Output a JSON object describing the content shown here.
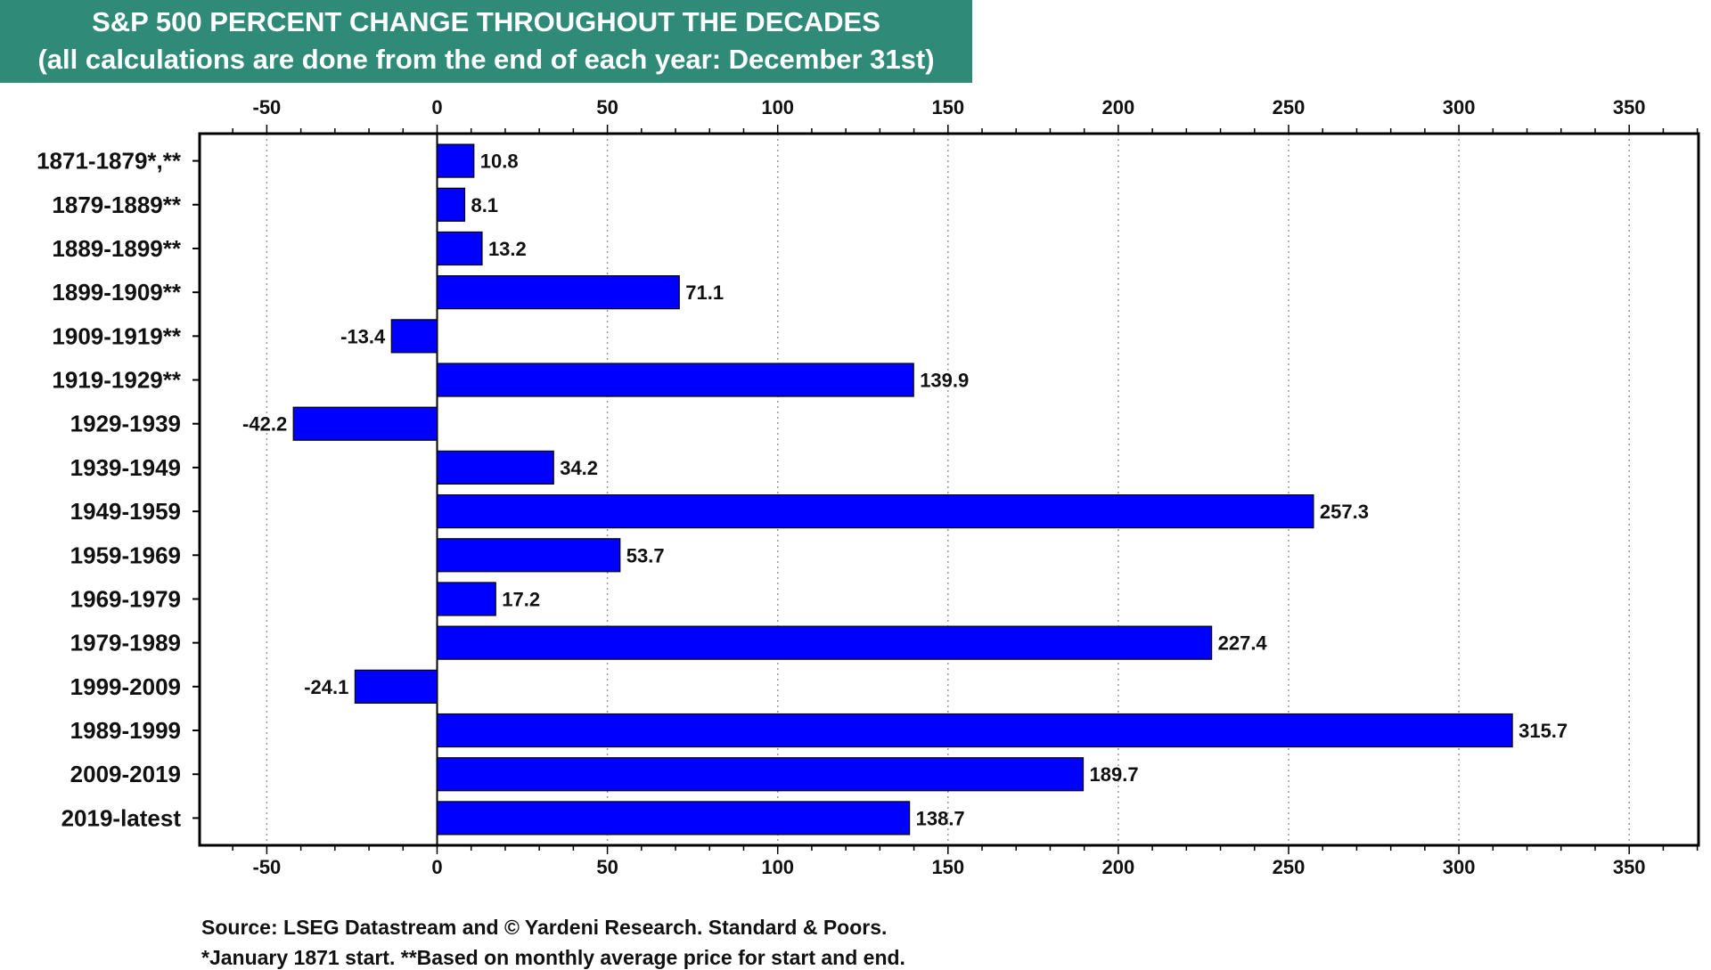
{
  "title": {
    "line1": "S&P 500 PERCENT CHANGE THROUGHOUT THE DECADES",
    "line2": "(all calculations are done from the end of each year: December 31st)"
  },
  "footer": {
    "source": "Source: LSEG Datastream and © Yardeni Research. Standard & Poors.",
    "notes": "*January 1871 start. **Based on monthly average price for start and end."
  },
  "colors": {
    "banner": "#2f8a78",
    "bar": "#0000ff",
    "axis": "#000000",
    "grid": "#9a9a9a"
  },
  "chart_data": {
    "type": "bar",
    "orientation": "horizontal",
    "categories": [
      "1871-1879*,**",
      "1879-1889**",
      "1889-1899**",
      "1899-1909**",
      "1909-1919**",
      "1919-1929**",
      "1929-1939",
      "1939-1949",
      "1949-1959",
      "1959-1969",
      "1969-1979",
      "1979-1989",
      "1999-2009",
      "1989-1999",
      "2009-2019",
      "2019-latest"
    ],
    "values": [
      10.8,
      8.1,
      13.2,
      71.1,
      -13.4,
      139.9,
      -42.2,
      34.2,
      257.3,
      53.7,
      17.2,
      227.4,
      -24.1,
      315.7,
      189.7,
      138.7
    ],
    "data_labels": [
      "10.8",
      "8.1",
      "13.2",
      "71.1",
      "-13.4",
      "139.9",
      "-42.2",
      "34.2",
      "257.3",
      "53.7",
      "17.2",
      "227.4",
      "-24.1",
      "315.7",
      "189.7",
      "138.7"
    ],
    "xlim": [
      -70,
      370
    ],
    "x_ticks": [
      -50,
      0,
      50,
      100,
      150,
      200,
      250,
      300,
      350
    ],
    "x_tick_labels": [
      "-50",
      "0",
      "50",
      "100",
      "150",
      "200",
      "250",
      "300",
      "350"
    ],
    "x_minor_step": 10,
    "grid": "vertical-dotted",
    "legend": "none"
  }
}
